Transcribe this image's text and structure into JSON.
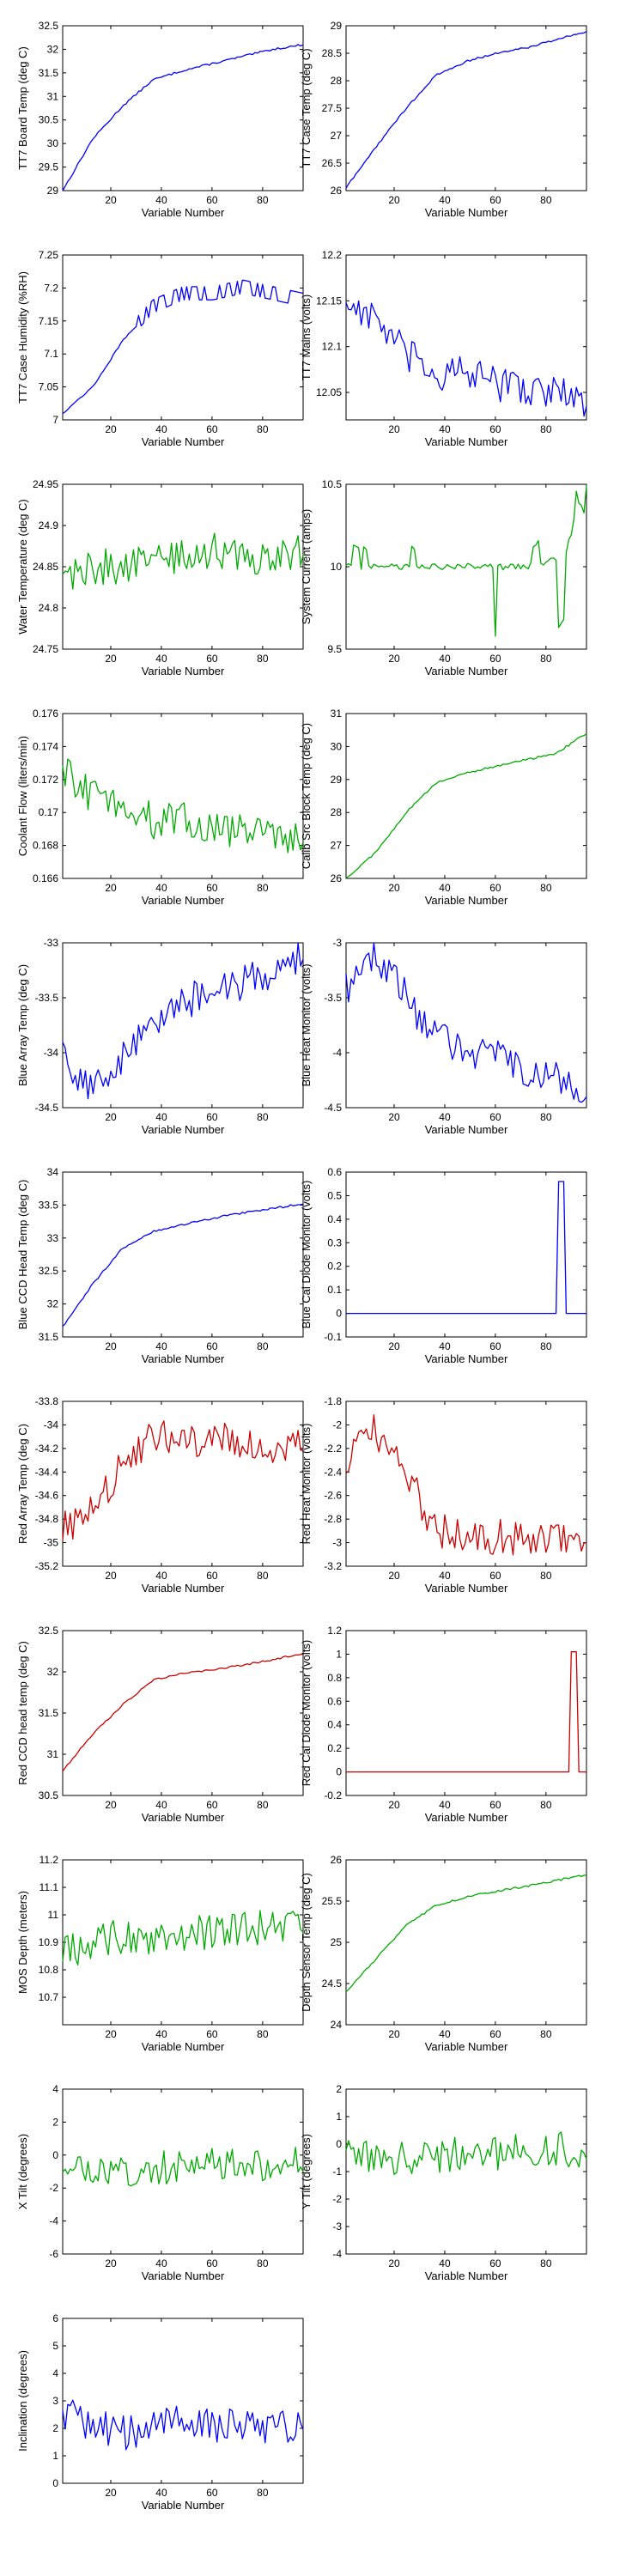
{
  "chart_data": [
    {
      "type": "line",
      "ylabel": "TT7 Board Temp (deg C)",
      "xlabel": "Variable Number",
      "xlim": [
        1,
        96
      ],
      "ylim": [
        29,
        32.5
      ],
      "yticks": [
        29,
        29.5,
        30,
        30.5,
        31,
        31.5,
        32,
        32.5
      ],
      "color": "#0000ff",
      "kind": "warm",
      "values": [
        29.0,
        30.1,
        30.8,
        31.35,
        31.55,
        31.7,
        31.85,
        32.0,
        32.1
      ]
    },
    {
      "type": "line",
      "ylabel": "TT7 Case Temp (deg C)",
      "xlabel": "Variable Number",
      "xlim": [
        1,
        96
      ],
      "ylim": [
        26,
        29
      ],
      "yticks": [
        26,
        26.5,
        27,
        27.5,
        28,
        28.5,
        29
      ],
      "color": "#0000ff",
      "kind": "warm",
      "values": [
        26.05,
        26.8,
        27.5,
        28.1,
        28.35,
        28.5,
        28.6,
        28.75,
        28.9
      ]
    },
    {
      "type": "line",
      "ylabel": "TT7 Case Humidity (%RH)",
      "xlabel": "Variable Number",
      "xlim": [
        1,
        96
      ],
      "ylim": [
        7,
        7.25
      ],
      "yticks": [
        7,
        7.05,
        7.1,
        7.15,
        7.2,
        7.25
      ],
      "color": "#0000ff",
      "kind": "step",
      "values": [
        7.01,
        7.05,
        7.12,
        7.17,
        7.19,
        7.19,
        7.2,
        7.19,
        7.18
      ]
    },
    {
      "type": "line",
      "ylabel": "TT7 Mains (volts)",
      "xlabel": "Variable Number",
      "xlim": [
        1,
        96
      ],
      "ylim": [
        12.02,
        12.2
      ],
      "yticks": [
        12.05,
        12.1,
        12.15,
        12.2
      ],
      "color": "#0000ff",
      "kind": "noisy",
      "values": [
        12.15,
        12.13,
        12.09,
        12.07,
        12.07,
        12.06,
        12.055,
        12.05,
        12.04
      ]
    },
    {
      "type": "line",
      "ylabel": "Water Temperature (deg C)",
      "xlabel": "Variable Number",
      "xlim": [
        1,
        96
      ],
      "ylim": [
        24.75,
        24.95
      ],
      "yticks": [
        24.75,
        24.8,
        24.85,
        24.9,
        24.95
      ],
      "color": "#00aa00",
      "kind": "noisy",
      "values": [
        24.84,
        24.85,
        24.85,
        24.86,
        24.86,
        24.87,
        24.86,
        24.86,
        24.87
      ]
    },
    {
      "type": "line",
      "ylabel": "System Current (amps)",
      "xlabel": "Variable Number",
      "xlim": [
        1,
        96
      ],
      "ylim": [
        9.5,
        10.5
      ],
      "yticks": [
        9.5,
        10,
        10.5
      ],
      "color": "#00aa00",
      "kind": "spiky",
      "values": [
        10.0,
        10.0,
        10.0,
        10.0,
        10.0,
        10.0,
        10.0,
        10.05,
        10.2
      ]
    },
    {
      "type": "line",
      "ylabel": "Coolant Flow (liters/min)",
      "xlabel": "Variable Number",
      "xlim": [
        1,
        96
      ],
      "ylim": [
        0.166,
        0.176
      ],
      "yticks": [
        0.166,
        0.168,
        0.17,
        0.172,
        0.174,
        0.176
      ],
      "color": "#00aa00",
      "kind": "noisy",
      "values": [
        0.1725,
        0.171,
        0.1705,
        0.1695,
        0.1695,
        0.169,
        0.169,
        0.1685,
        0.1685
      ]
    },
    {
      "type": "line",
      "ylabel": "Calib Src Block Temp (deg C)",
      "xlabel": "Variable Number",
      "xlim": [
        1,
        96
      ],
      "ylim": [
        26,
        31
      ],
      "yticks": [
        26,
        27,
        28,
        29,
        30,
        31
      ],
      "color": "#00aa00",
      "kind": "warm",
      "values": [
        26.0,
        26.8,
        28.0,
        28.9,
        29.2,
        29.4,
        29.6,
        29.8,
        30.4
      ]
    },
    {
      "type": "line",
      "ylabel": "Blue Array Temp (deg C)",
      "xlabel": "Variable Number",
      "xlim": [
        1,
        96
      ],
      "ylim": [
        -34.5,
        -33
      ],
      "yticks": [
        -34.5,
        -34,
        -33.5,
        -33
      ],
      "color": "#0000ff",
      "kind": "noisy",
      "values": [
        -34.0,
        -34.35,
        -34.05,
        -33.7,
        -33.55,
        -33.45,
        -33.35,
        -33.25,
        -33.1
      ]
    },
    {
      "type": "line",
      "ylabel": "Blue Heat Monitor (volts)",
      "xlabel": "Variable Number",
      "xlim": [
        1,
        96
      ],
      "ylim": [
        -4.5,
        -3
      ],
      "yticks": [
        -4.5,
        -4,
        -3.5,
        -3
      ],
      "color": "#0000ff",
      "kind": "noisy",
      "values": [
        -3.4,
        -3.1,
        -3.5,
        -3.85,
        -3.95,
        -4.05,
        -4.15,
        -4.25,
        -4.35
      ]
    },
    {
      "type": "line",
      "ylabel": "Blue CCD Head Temp (deg C)",
      "xlabel": "Variable Number",
      "xlim": [
        1,
        96
      ],
      "ylim": [
        31.5,
        34
      ],
      "yticks": [
        31.5,
        32,
        32.5,
        33,
        33.5,
        34
      ],
      "color": "#0000ff",
      "kind": "warm",
      "values": [
        31.65,
        32.3,
        32.85,
        33.1,
        33.2,
        33.3,
        33.38,
        33.45,
        33.52
      ]
    },
    {
      "type": "line",
      "ylabel": "Blue Cal Diode Monitor (volts)",
      "xlabel": "Variable Number",
      "xlim": [
        1,
        96
      ],
      "ylim": [
        -0.1,
        0.6
      ],
      "yticks": [
        -0.1,
        0,
        0.1,
        0.2,
        0.3,
        0.4,
        0.5,
        0.6
      ],
      "color": "#0000ff",
      "kind": "pulse",
      "values": [
        0,
        0,
        0,
        0,
        0,
        0,
        0,
        0,
        0
      ],
      "pulse": {
        "x": [
          85,
          87
        ],
        "y": 0.56
      }
    },
    {
      "type": "line",
      "ylabel": "Red Array Temp (deg C)",
      "xlabel": "Variable Number",
      "xlim": [
        1,
        96
      ],
      "ylim": [
        -35.2,
        -33.8
      ],
      "yticks": [
        -35.2,
        -35,
        -34.8,
        -34.6,
        -34.4,
        -34.2,
        -34,
        -33.8
      ],
      "color": "#cc0000",
      "kind": "noisy",
      "values": [
        -34.85,
        -34.75,
        -34.35,
        -34.05,
        -34.15,
        -34.1,
        -34.2,
        -34.2,
        -34.15
      ]
    },
    {
      "type": "line",
      "ylabel": "Red Heat Monitor (volts)",
      "xlabel": "Variable Number",
      "xlim": [
        1,
        96
      ],
      "ylim": [
        -3.2,
        -1.8
      ],
      "yticks": [
        -3.2,
        -3,
        -2.8,
        -2.6,
        -2.4,
        -2.2,
        -2,
        -1.8
      ],
      "color": "#cc0000",
      "kind": "noisy",
      "values": [
        -2.3,
        -2.05,
        -2.4,
        -2.9,
        -2.95,
        -2.95,
        -2.95,
        -2.95,
        -2.95
      ]
    },
    {
      "type": "line",
      "ylabel": "Red CCD head temp (deg C)",
      "xlabel": "Variable Number",
      "xlim": [
        1,
        96
      ],
      "ylim": [
        30.5,
        32.5
      ],
      "yticks": [
        30.5,
        31,
        31.5,
        32,
        32.5
      ],
      "color": "#cc0000",
      "kind": "warm",
      "values": [
        30.8,
        31.25,
        31.6,
        31.9,
        31.98,
        32.03,
        32.08,
        32.15,
        32.22
      ]
    },
    {
      "type": "line",
      "ylabel": "Red Cal Diode Monitor (volts)",
      "xlabel": "Variable Number",
      "xlim": [
        1,
        96
      ],
      "ylim": [
        -0.2,
        1.2
      ],
      "yticks": [
        -0.2,
        0,
        0.2,
        0.4,
        0.6,
        0.8,
        1,
        1.2
      ],
      "color": "#cc0000",
      "kind": "pulse",
      "values": [
        0,
        0,
        0,
        0,
        0,
        0,
        0,
        0,
        0
      ],
      "pulse": {
        "x": [
          90,
          92
        ],
        "y": 1.02
      }
    },
    {
      "type": "line",
      "ylabel": "MOS Depth (meters)",
      "xlabel": "Variable Number",
      "xlim": [
        1,
        96
      ],
      "ylim": [
        10.6,
        11.2
      ],
      "yticks": [
        10.7,
        10.8,
        10.9,
        11,
        11.1,
        11.2
      ],
      "color": "#00aa00",
      "kind": "noisy",
      "values": [
        10.85,
        10.9,
        10.92,
        10.92,
        10.93,
        10.94,
        10.95,
        10.95,
        10.96
      ]
    },
    {
      "type": "line",
      "ylabel": "Depth Sensor Temp (deg C)",
      "xlabel": "Variable Number",
      "xlim": [
        1,
        96
      ],
      "ylim": [
        24,
        26
      ],
      "yticks": [
        24,
        24.5,
        25,
        25.5,
        26
      ],
      "color": "#00aa00",
      "kind": "warm",
      "values": [
        24.4,
        24.8,
        25.2,
        25.45,
        25.55,
        25.62,
        25.68,
        25.75,
        25.82
      ]
    },
    {
      "type": "line",
      "ylabel": "X Tilt (degrees)",
      "xlabel": "Variable Number",
      "xlim": [
        1,
        96
      ],
      "ylim": [
        -6,
        4
      ],
      "yticks": [
        -6,
        -4,
        -2,
        0,
        2,
        4
      ],
      "color": "#00aa00",
      "kind": "noisy",
      "values": [
        -1.0,
        -0.7,
        -0.8,
        -0.8,
        -0.7,
        -0.6,
        -0.6,
        -0.6,
        -0.6
      ]
    },
    {
      "type": "line",
      "ylabel": "Y Tilt (degrees)",
      "xlabel": "Variable Number",
      "xlim": [
        1,
        96
      ],
      "ylim": [
        -4,
        2
      ],
      "yticks": [
        -4,
        -3,
        -2,
        -1,
        0,
        1,
        2
      ],
      "color": "#00aa00",
      "kind": "noisy",
      "values": [
        -0.3,
        -0.5,
        -0.6,
        -0.4,
        -0.3,
        -0.3,
        -0.2,
        -0.2,
        -0.3
      ]
    },
    {
      "type": "line",
      "ylabel": "Inclination (degrees)",
      "xlabel": "Variable Number",
      "xlim": [
        1,
        96
      ],
      "ylim": [
        0,
        6
      ],
      "yticks": [
        0,
        1,
        2,
        3,
        4,
        5,
        6
      ],
      "color": "#0000ff",
      "kind": "noisy",
      "values": [
        2.5,
        2.2,
        1.8,
        2.0,
        2.2,
        2.1,
        2.0,
        2.1,
        2.2
      ]
    }
  ],
  "xticks": [
    20,
    40,
    60,
    80
  ]
}
